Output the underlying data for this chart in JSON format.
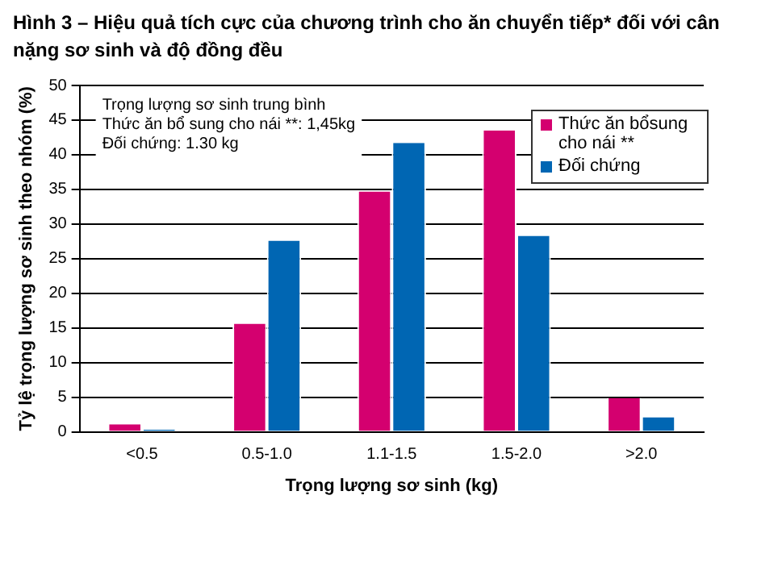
{
  "chart_data": {
    "type": "bar",
    "title": "Hình 3 – Hiệu quả tích cực của chương trình cho ăn chuyển tiếp* đối với cân nặng sơ sinh và độ đồng đều",
    "xlabel": "Trọng lượng sơ sinh (kg)",
    "ylabel": "Tỷ lệ trọng lượng sơ sinh theo nhóm (%)",
    "categories": [
      "<0.5",
      "0.5-1.0",
      "1.1-1.5",
      "1.5-2.0",
      ">2.0"
    ],
    "series": [
      {
        "name": "Thức ăn bổsung cho nái **",
        "color": "#d4006f",
        "values": [
          1.1,
          15.6,
          34.7,
          43.5,
          4.9
        ]
      },
      {
        "name": "Đối chứng",
        "color": "#0066b3",
        "values": [
          0.3,
          27.6,
          41.7,
          28.3,
          2.1
        ]
      }
    ],
    "ylim": [
      0,
      50
    ],
    "yticks": [
      0,
      5,
      10,
      15,
      20,
      25,
      30,
      35,
      40,
      45,
      50
    ],
    "grid": "y",
    "legend": "top right",
    "annotations": [
      "Trọng lượng sơ sinh trung bình",
      "Thức ăn bổ sung cho nái **: 1,45kg",
      "Đối chứng: 1.30 kg"
    ]
  }
}
